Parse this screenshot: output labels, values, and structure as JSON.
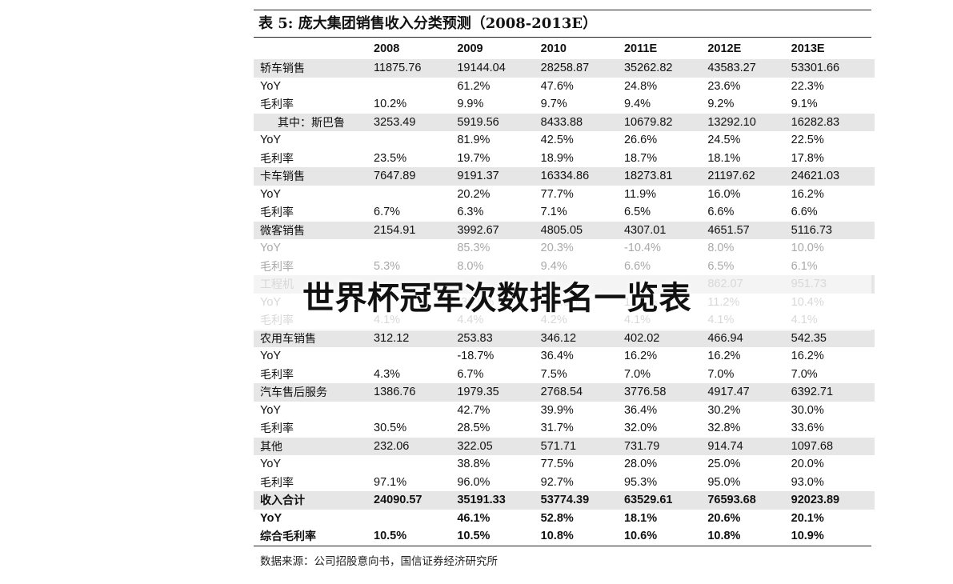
{
  "title": "表 5:  庞大集团销售收入分类预测（2008-2013E）",
  "columns": [
    "",
    "2008",
    "2009",
    "2010",
    "2011E",
    "2012E",
    "2013E"
  ],
  "rows": [
    {
      "label": "轿车销售",
      "values": [
        "11875.76",
        "19144.04",
        "28258.87",
        "35262.82",
        "43583.27",
        "53301.66"
      ],
      "shade": true
    },
    {
      "label": "YoY",
      "values": [
        "",
        "61.2%",
        "47.6%",
        "24.8%",
        "23.6%",
        "22.3%"
      ]
    },
    {
      "label": "毛利率",
      "values": [
        "10.2%",
        "9.9%",
        "9.7%",
        "9.4%",
        "9.2%",
        "9.1%"
      ]
    },
    {
      "label": "其中：斯巴鲁",
      "values": [
        "3253.49",
        "5919.56",
        "8433.88",
        "10679.82",
        "13292.10",
        "16282.83"
      ],
      "shade": true,
      "indent": true
    },
    {
      "label": "YoY",
      "values": [
        "",
        "81.9%",
        "42.5%",
        "26.6%",
        "24.5%",
        "22.5%"
      ]
    },
    {
      "label": "毛利率",
      "values": [
        "23.5%",
        "19.7%",
        "18.9%",
        "18.7%",
        "18.1%",
        "17.8%"
      ]
    },
    {
      "label": "卡车销售",
      "values": [
        "7647.89",
        "9191.37",
        "16334.86",
        "18273.81",
        "21197.62",
        "24621.03"
      ],
      "shade": true
    },
    {
      "label": "YoY",
      "values": [
        "",
        "20.2%",
        "77.7%",
        "11.9%",
        "16.0%",
        "16.2%"
      ]
    },
    {
      "label": "毛利率",
      "values": [
        "6.7%",
        "6.3%",
        "7.1%",
        "6.5%",
        "6.6%",
        "6.6%"
      ]
    },
    {
      "label": "微客销售",
      "values": [
        "2154.91",
        "3992.67",
        "4805.05",
        "4307.01",
        "4651.57",
        "5116.73"
      ],
      "shade": true
    },
    {
      "label": "YoY",
      "values": [
        "",
        "85.3%",
        "20.3%",
        "-10.4%",
        "8.0%",
        "10.0%"
      ],
      "faded": true
    },
    {
      "label": "毛利率",
      "values": [
        "5.3%",
        "8.0%",
        "9.4%",
        "6.6%",
        "6.5%",
        "6.1%"
      ],
      "faded": true
    },
    {
      "label": "工程机",
      "values": [
        "",
        "",
        "",
        "",
        "862.07",
        "951.73"
      ],
      "shade": true,
      "faded": true
    },
    {
      "label": "YoY",
      "values": [
        "",
        "-36.0%",
        "123.8%",
        "12.5%",
        "11.2%",
        "10.4%"
      ],
      "faded": true
    },
    {
      "label": "毛利率",
      "values": [
        "4.1%",
        "4.4%",
        "4.2%",
        "4.1%",
        "4.1%",
        "4.1%"
      ],
      "faded": true
    },
    {
      "label": "农用车销售",
      "values": [
        "312.12",
        "253.83",
        "346.12",
        "402.02",
        "466.94",
        "542.35"
      ],
      "shade": true
    },
    {
      "label": "YoY",
      "values": [
        "",
        "-18.7%",
        "36.4%",
        "16.2%",
        "16.2%",
        "16.2%"
      ]
    },
    {
      "label": "毛利率",
      "values": [
        "4.3%",
        "6.7%",
        "7.5%",
        "7.0%",
        "7.0%",
        "7.0%"
      ]
    },
    {
      "label": "汽车售后服务",
      "values": [
        "1386.76",
        "1979.35",
        "2768.54",
        "3776.58",
        "4917.47",
        "6392.71"
      ],
      "shade": true
    },
    {
      "label": "YoY",
      "values": [
        "",
        "42.7%",
        "39.9%",
        "36.4%",
        "30.2%",
        "30.0%"
      ]
    },
    {
      "label": "毛利率",
      "values": [
        "30.5%",
        "28.5%",
        "31.7%",
        "32.0%",
        "32.8%",
        "33.6%"
      ]
    },
    {
      "label": "其他",
      "values": [
        "232.06",
        "322.05",
        "571.71",
        "731.79",
        "914.74",
        "1097.68"
      ],
      "shade": true
    },
    {
      "label": "YoY",
      "values": [
        "",
        "38.8%",
        "77.5%",
        "28.0%",
        "25.0%",
        "20.0%"
      ]
    },
    {
      "label": "毛利率",
      "values": [
        "97.1%",
        "96.0%",
        "92.7%",
        "95.3%",
        "95.0%",
        "93.0%"
      ]
    },
    {
      "label": "收入合计",
      "values": [
        "24090.57",
        "35191.33",
        "53774.39",
        "63529.61",
        "76593.68",
        "92023.89"
      ],
      "shade": true,
      "bold": true
    },
    {
      "label": "YoY",
      "values": [
        "",
        "46.1%",
        "52.8%",
        "18.1%",
        "20.6%",
        "20.1%"
      ],
      "bold": true
    },
    {
      "label": "综合毛利率",
      "values": [
        "10.5%",
        "10.5%",
        "10.8%",
        "10.6%",
        "10.8%",
        "10.9%"
      ],
      "bold": true
    }
  ],
  "source": "数据来源：公司招股意向书，国信证券经济研究所",
  "watermark": "世界杯冠军次数排名一览表"
}
